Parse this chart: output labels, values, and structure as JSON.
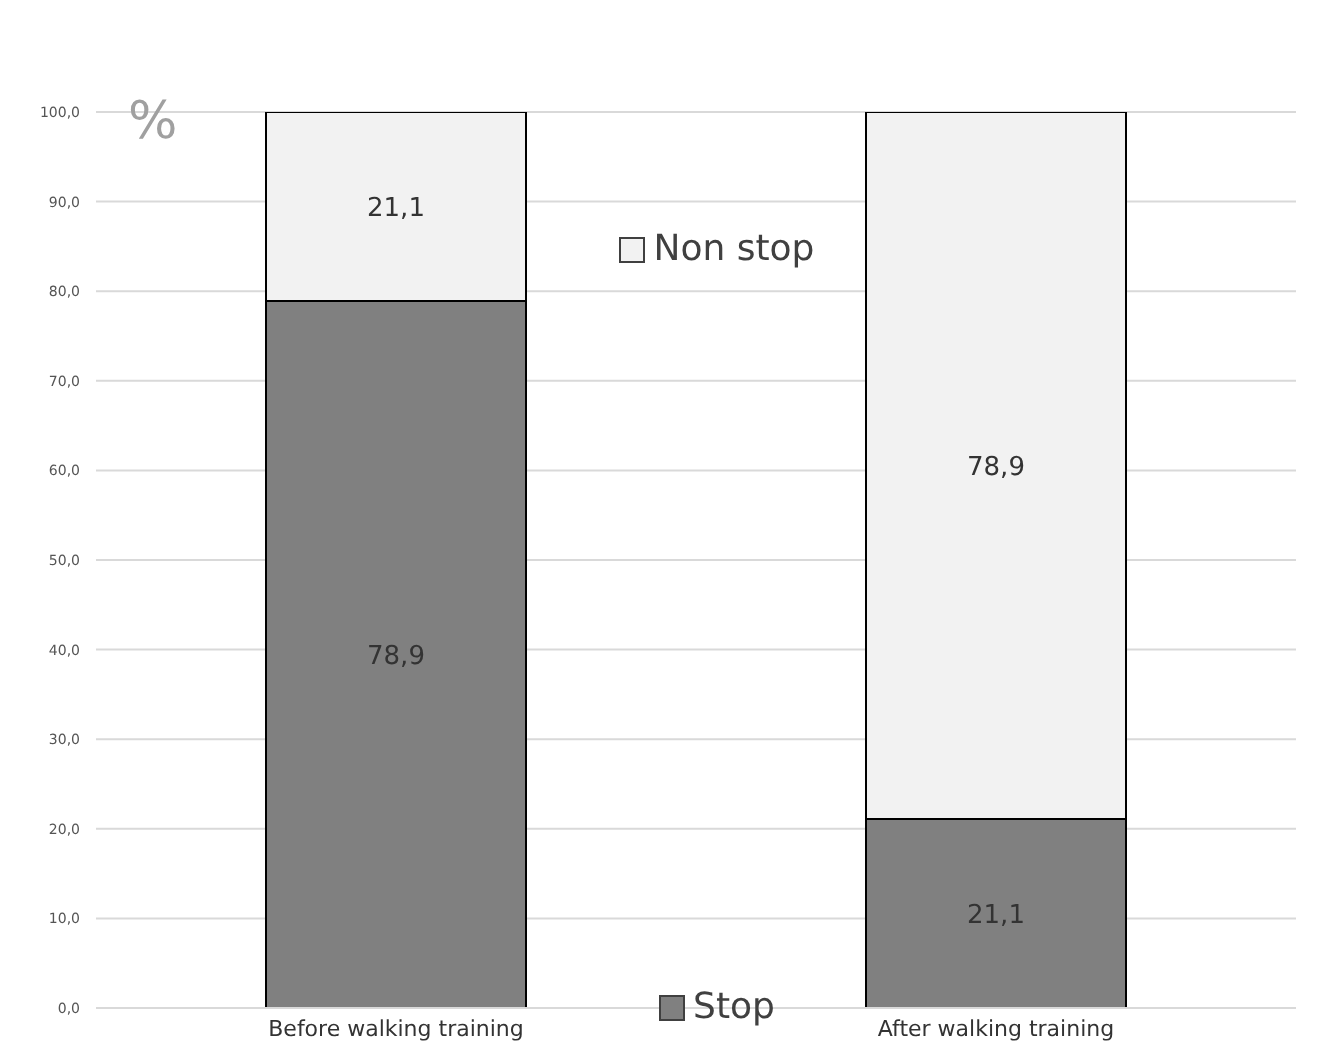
{
  "chart_data": {
    "type": "bar",
    "stacked": true,
    "ylabel": "%",
    "categories": [
      "Before walking training",
      "After walking training"
    ],
    "series": [
      {
        "name": "Stop",
        "color": "#808080",
        "values": [
          78.9,
          21.1
        ],
        "value_labels": [
          "78,9",
          "21,1"
        ]
      },
      {
        "name": "Non stop",
        "color": "#f2f2f2",
        "values": [
          21.1,
          78.9
        ],
        "value_labels": [
          "21,1",
          "78,9"
        ]
      }
    ],
    "ylim": [
      0,
      100
    ],
    "yticks": [
      {
        "value": 0,
        "label": "0,0"
      },
      {
        "value": 10,
        "label": "10,0"
      },
      {
        "value": 20,
        "label": "20,0"
      },
      {
        "value": 30,
        "label": "30,0"
      },
      {
        "value": 40,
        "label": "40,0"
      },
      {
        "value": 50,
        "label": "50,0"
      },
      {
        "value": 60,
        "label": "60,0"
      },
      {
        "value": 70,
        "label": "70,0"
      },
      {
        "value": 80,
        "label": "80,0"
      },
      {
        "value": 90,
        "label": "90,0"
      },
      {
        "value": 100,
        "label": "100,0"
      }
    ],
    "grid": "y",
    "legend": "center"
  }
}
